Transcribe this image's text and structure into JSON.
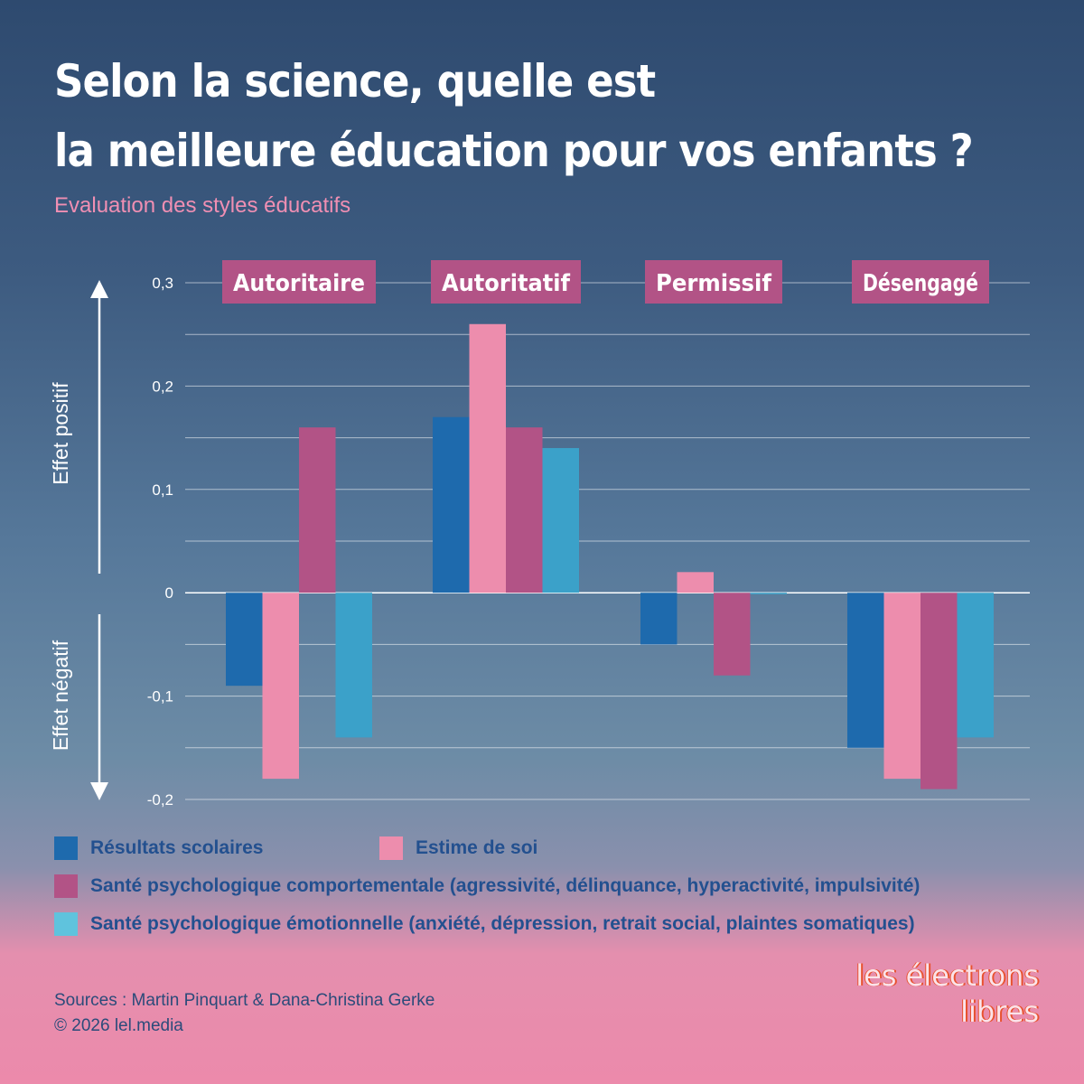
{
  "header": {
    "title_line1": "Selon la science, quelle est",
    "title_line2": "la meilleure éducation pour vos enfants ?",
    "subtitle": "Evaluation des styles éducatifs"
  },
  "colors": {
    "academic": "#1e6aad",
    "self_esteem": "#ed8dad",
    "behavioral": "#b25386",
    "emotional": "#3ba1c9",
    "category_badge": "#b25386"
  },
  "chart_data": {
    "type": "bar",
    "categories": [
      "Autoritaire",
      "Autoritatif",
      "Permissif",
      "Désengagé"
    ],
    "series": [
      {
        "name": "Résultats scolaires",
        "values": [
          -0.09,
          0.17,
          -0.05,
          -0.15
        ]
      },
      {
        "name": "Estime de soi",
        "values": [
          -0.18,
          0.26,
          0.02,
          -0.18
        ]
      },
      {
        "name": "Santé psychologique comportementale (agressivité, délinquance, hyperactivité, impulsivité)",
        "values": [
          0.16,
          0.16,
          -0.08,
          -0.19
        ]
      },
      {
        "name": "Santé psychologique émotionnelle (anxiété, dépression, retrait social, plaintes somatiques)",
        "values": [
          -0.14,
          0.14,
          0.0,
          -0.14
        ]
      }
    ],
    "ylim": [
      -0.2,
      0.3
    ],
    "yticks": [
      0.3,
      0.2,
      0.1,
      0,
      -0.1,
      -0.2
    ],
    "ytick_labels": [
      "0,3",
      "0,2",
      "0,1",
      "0",
      "-0,1",
      "-0,2"
    ],
    "axis_positive_label": "Effet positif",
    "axis_negative_label": "Effet négatif",
    "grid": true
  },
  "legend": {
    "academic": "Résultats scolaires",
    "self_esteem": "Estime de soi",
    "behavioral": "Santé psychologique comportementale (agressivité, délinquance, hyperactivité, impulsivité)",
    "emotional": "Santé psychologique émotionnelle (anxiété, dépression, retrait social, plaintes somatiques)"
  },
  "footer": {
    "sources": "Sources : Martin Pinquart & Dana-Christina Gerke",
    "copyright": "© 2026 lel.media",
    "logo_line1": "les électrons",
    "logo_line2": "libres"
  }
}
